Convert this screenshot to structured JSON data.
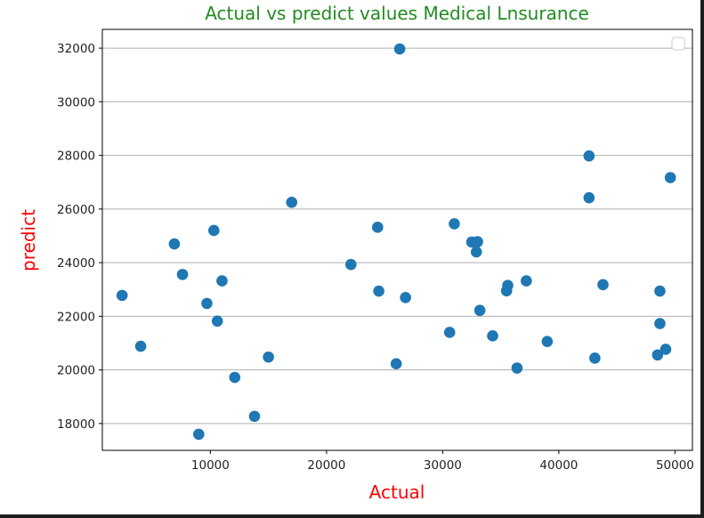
{
  "chart_data": {
    "type": "scatter",
    "title": "Actual vs predict values Medical Lnsurance",
    "xlabel": "Actual",
    "ylabel": "predict",
    "xlim": [
      700,
      51500
    ],
    "ylim": [
      17000,
      32700
    ],
    "x_ticks": [
      10000,
      20000,
      30000,
      40000,
      50000
    ],
    "y_ticks": [
      18000,
      20000,
      22000,
      24000,
      26000,
      28000,
      30000,
      32000
    ],
    "x_tick_labels": [
      "10000",
      "20000",
      "30000",
      "40000",
      "50000"
    ],
    "y_tick_labels": [
      "18000",
      "20000",
      "22000",
      "24000",
      "26000",
      "28000",
      "30000",
      "32000"
    ],
    "grid": "horizontal",
    "legend": "top-right (empty)",
    "colors": {
      "marker": "#1f77b4",
      "title": "#228b22",
      "axis_label": "#ff0000",
      "grid": "#b0b0b0",
      "frame": "#000000"
    },
    "points": [
      {
        "x": 2400,
        "y": 22780
      },
      {
        "x": 4000,
        "y": 20880
      },
      {
        "x": 6900,
        "y": 24700
      },
      {
        "x": 7600,
        "y": 23560
      },
      {
        "x": 9000,
        "y": 17600
      },
      {
        "x": 9700,
        "y": 22480
      },
      {
        "x": 10300,
        "y": 25200
      },
      {
        "x": 10600,
        "y": 21820
      },
      {
        "x": 11000,
        "y": 23320
      },
      {
        "x": 12100,
        "y": 19720
      },
      {
        "x": 13800,
        "y": 18270
      },
      {
        "x": 15000,
        "y": 20480
      },
      {
        "x": 17000,
        "y": 26250
      },
      {
        "x": 22100,
        "y": 23930
      },
      {
        "x": 24400,
        "y": 25320
      },
      {
        "x": 24500,
        "y": 22940
      },
      {
        "x": 26000,
        "y": 20230
      },
      {
        "x": 26300,
        "y": 31970
      },
      {
        "x": 26800,
        "y": 22700
      },
      {
        "x": 30600,
        "y": 21400
      },
      {
        "x": 31000,
        "y": 25450
      },
      {
        "x": 32500,
        "y": 24770
      },
      {
        "x": 32900,
        "y": 24400
      },
      {
        "x": 33000,
        "y": 24780
      },
      {
        "x": 33200,
        "y": 22220
      },
      {
        "x": 34300,
        "y": 21270
      },
      {
        "x": 35500,
        "y": 22950
      },
      {
        "x": 35600,
        "y": 23150
      },
      {
        "x": 36400,
        "y": 20070
      },
      {
        "x": 37200,
        "y": 23320
      },
      {
        "x": 39000,
        "y": 21060
      },
      {
        "x": 42600,
        "y": 27980
      },
      {
        "x": 42600,
        "y": 26420
      },
      {
        "x": 43100,
        "y": 20440
      },
      {
        "x": 43800,
        "y": 23180
      },
      {
        "x": 48500,
        "y": 20560
      },
      {
        "x": 48700,
        "y": 22940
      },
      {
        "x": 48700,
        "y": 21730
      },
      {
        "x": 49200,
        "y": 20770
      },
      {
        "x": 49600,
        "y": 27170
      }
    ]
  }
}
